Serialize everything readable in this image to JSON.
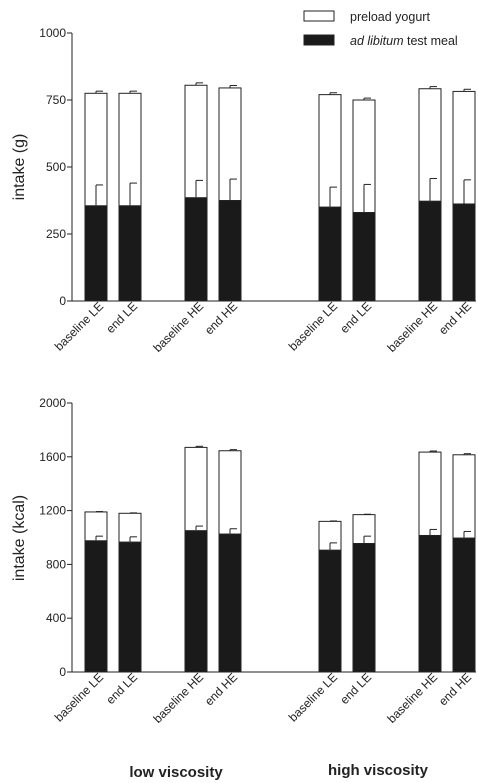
{
  "legend": [
    {
      "label_pre": "",
      "label_italic": "",
      "label_post": "preload yogurt",
      "fill": "#ffffff"
    },
    {
      "label_pre": "",
      "label_italic": "ad libitum",
      "label_post": " test meal",
      "fill": "#1a1a1a"
    }
  ],
  "group_labels": [
    "low viscosity",
    "high viscosity"
  ],
  "colors": {
    "test_meal": "#1a1a1a",
    "preload": "#ffffff",
    "outline": "#222222"
  },
  "chart_data": [
    {
      "type": "bar",
      "stacked": true,
      "ylabel": "intake (g)",
      "ylim": [
        0,
        1000
      ],
      "yticks": [
        0,
        250,
        500,
        750,
        1000
      ],
      "categories": [
        "baseline LE",
        "end LE",
        "baseline HE",
        "end HE",
        "baseline LE",
        "end LE",
        "baseline HE",
        "end HE"
      ],
      "series": [
        {
          "name": "ad libitum test meal",
          "values": [
            355,
            355,
            385,
            375,
            350,
            330,
            372,
            362
          ],
          "error": [
            78,
            85,
            65,
            80,
            75,
            105,
            85,
            90
          ]
        },
        {
          "name": "preload yogurt",
          "values": [
            420,
            420,
            420,
            420,
            420,
            420,
            420,
            420
          ],
          "error": [
            8,
            8,
            9,
            9,
            7,
            7,
            8,
            8
          ]
        }
      ]
    },
    {
      "type": "bar",
      "stacked": true,
      "ylabel": "intake (kcal)",
      "ylim": [
        0,
        2000
      ],
      "yticks": [
        0,
        400,
        800,
        1200,
        1600,
        2000
      ],
      "categories": [
        "baseline LE",
        "end LE",
        "baseline HE",
        "end HE",
        "baseline LE",
        "end LE",
        "baseline HE",
        "end HE"
      ],
      "series": [
        {
          "name": "ad libitum test meal",
          "values": [
            975,
            965,
            1050,
            1025,
            905,
            955,
            1015,
            995
          ],
          "error": [
            35,
            40,
            35,
            40,
            55,
            55,
            45,
            50
          ]
        },
        {
          "name": "preload yogurt",
          "values": [
            215,
            215,
            620,
            620,
            215,
            215,
            620,
            620
          ],
          "error": [
            3,
            3,
            8,
            8,
            3,
            3,
            8,
            8
          ]
        }
      ]
    }
  ]
}
